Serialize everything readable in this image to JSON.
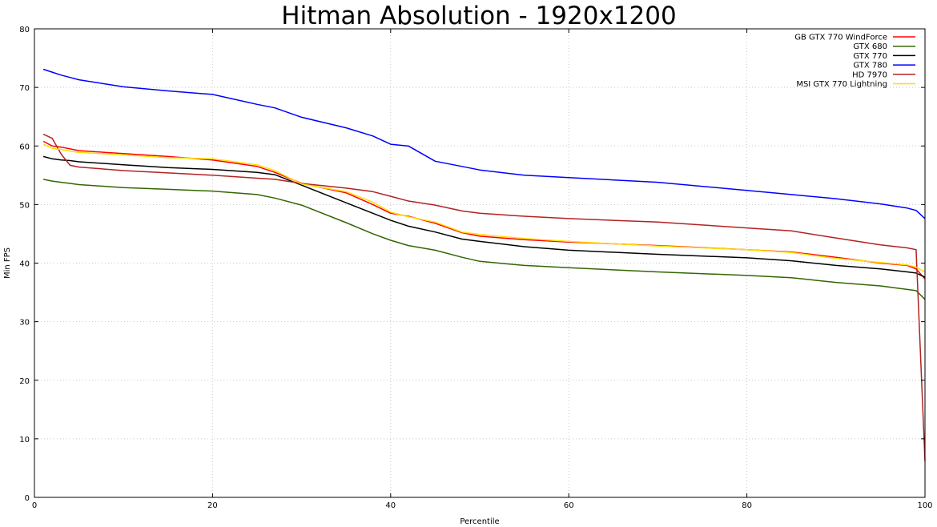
{
  "chart_data": {
    "type": "line",
    "title": "Hitman Absolution - 1920x1200",
    "xlabel": "Percentile",
    "ylabel": "Min FPS",
    "xlim": [
      0,
      100
    ],
    "ylim": [
      0,
      80
    ],
    "xticks": [
      0,
      20,
      40,
      60,
      80,
      100
    ],
    "yticks": [
      0,
      10,
      20,
      30,
      40,
      50,
      60,
      70,
      80
    ],
    "grid": true,
    "legend_position": "top-right",
    "x": [
      1,
      2,
      3,
      4,
      5,
      10,
      15,
      20,
      25,
      27,
      30,
      35,
      38,
      40,
      42,
      45,
      48,
      50,
      55,
      60,
      70,
      80,
      85,
      90,
      95,
      98,
      99,
      100
    ],
    "series": [
      {
        "name": "GB GTX 770 WindForce",
        "color": "#ff0000",
        "values": [
          60.8,
          60.0,
          59.8,
          59.5,
          59.2,
          58.7,
          58.2,
          57.6,
          56.5,
          55.5,
          53.6,
          52.0,
          50.0,
          48.5,
          48.0,
          46.8,
          45.2,
          44.6,
          44.0,
          43.6,
          43.0,
          42.3,
          41.9,
          41.0,
          40.0,
          39.6,
          39.0,
          37.3
        ]
      },
      {
        "name": "GTX 680",
        "color": "#336600",
        "values": [
          54.3,
          54.0,
          53.8,
          53.6,
          53.4,
          52.9,
          52.6,
          52.3,
          51.7,
          51.1,
          49.9,
          46.9,
          45.0,
          43.9,
          43.0,
          42.2,
          41.0,
          40.3,
          39.6,
          39.2,
          38.5,
          37.9,
          37.5,
          36.7,
          36.1,
          35.5,
          35.3,
          33.8
        ]
      },
      {
        "name": "GTX 770",
        "color": "#000000",
        "values": [
          58.2,
          57.8,
          57.6,
          57.5,
          57.3,
          56.8,
          56.3,
          56.0,
          55.5,
          55.1,
          53.3,
          50.3,
          48.5,
          47.3,
          46.3,
          45.3,
          44.1,
          43.7,
          42.8,
          42.2,
          41.5,
          40.9,
          40.4,
          39.6,
          39.0,
          38.5,
          38.3,
          37.6
        ]
      },
      {
        "name": "GTX 780",
        "color": "#0000ff",
        "values": [
          73.1,
          72.6,
          72.1,
          71.7,
          71.3,
          70.1,
          69.4,
          68.8,
          67.1,
          66.5,
          64.9,
          63.1,
          61.7,
          60.3,
          60.0,
          57.4,
          56.5,
          55.9,
          55.0,
          54.6,
          53.8,
          52.4,
          51.7,
          51.0,
          50.1,
          49.4,
          49.0,
          47.6
        ]
      },
      {
        "name": "HD 7970",
        "color": "#b22222",
        "values": [
          62.0,
          61.3,
          58.6,
          56.7,
          56.4,
          55.8,
          55.4,
          55.0,
          54.5,
          54.3,
          53.6,
          52.8,
          52.2,
          51.4,
          50.6,
          49.9,
          48.9,
          48.5,
          48.0,
          47.6,
          47.0,
          46.0,
          45.5,
          44.3,
          43.1,
          42.6,
          42.3,
          6.2
        ]
      },
      {
        "name": "MSI GTX 770 Lightning",
        "color": "#ffdd00",
        "values": [
          60.3,
          59.6,
          59.4,
          59.1,
          58.9,
          58.5,
          58.0,
          57.8,
          56.8,
          55.8,
          53.5,
          52.2,
          50.4,
          48.7,
          47.9,
          47.0,
          45.3,
          44.9,
          44.2,
          43.7,
          42.9,
          42.3,
          41.8,
          40.8,
          40.1,
          39.7,
          39.3,
          38.5
        ]
      }
    ]
  }
}
